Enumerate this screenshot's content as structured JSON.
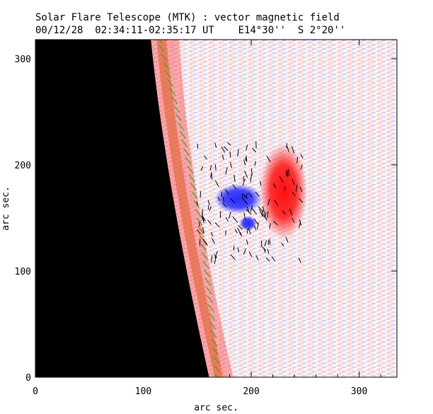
{
  "chart_data": {
    "type": "heatmap",
    "title": "Solar Flare Telescope (MTK) : vector magnetic field",
    "subtitle_date_time": "00/12/28  02:34:11-02:35:17 UT",
    "subtitle_position": "E14°30''  S 2°20''",
    "xlabel": "arc sec.",
    "ylabel": "arc sec.",
    "xlim": [
      0,
      335
    ],
    "ylim": [
      0,
      318
    ],
    "xticks": [
      0,
      100,
      200,
      300
    ],
    "yticks": [
      0,
      100,
      200,
      300
    ],
    "limb": {
      "x_at_y_max": 107,
      "x_at_y_min": 161,
      "description": "solar limb; black off-disk region to the left"
    },
    "features": [
      {
        "name": "positive polarity region",
        "polarity": "positive",
        "center": [
          230,
          175
        ],
        "extent": [
          22,
          45
        ],
        "color": "#ff2020"
      },
      {
        "name": "negative polarity region",
        "polarity": "negative",
        "center": [
          188,
          168
        ],
        "extent": [
          22,
          14
        ],
        "color": "#3030ff"
      },
      {
        "name": "negative polarity patch",
        "polarity": "negative",
        "center": [
          197,
          145
        ],
        "extent": [
          8,
          7
        ],
        "color": "#3030ff"
      },
      {
        "name": "limb positive band",
        "polarity": "positive",
        "center": [
          135,
          160
        ],
        "extent": [
          10,
          160
        ],
        "color": "#ff6060"
      }
    ],
    "colors": {
      "positive": "#ff2020",
      "negative": "#2020ff",
      "off_disk": "#000000",
      "background": "#ffffff",
      "limb_vectors": "#40a020"
    }
  }
}
